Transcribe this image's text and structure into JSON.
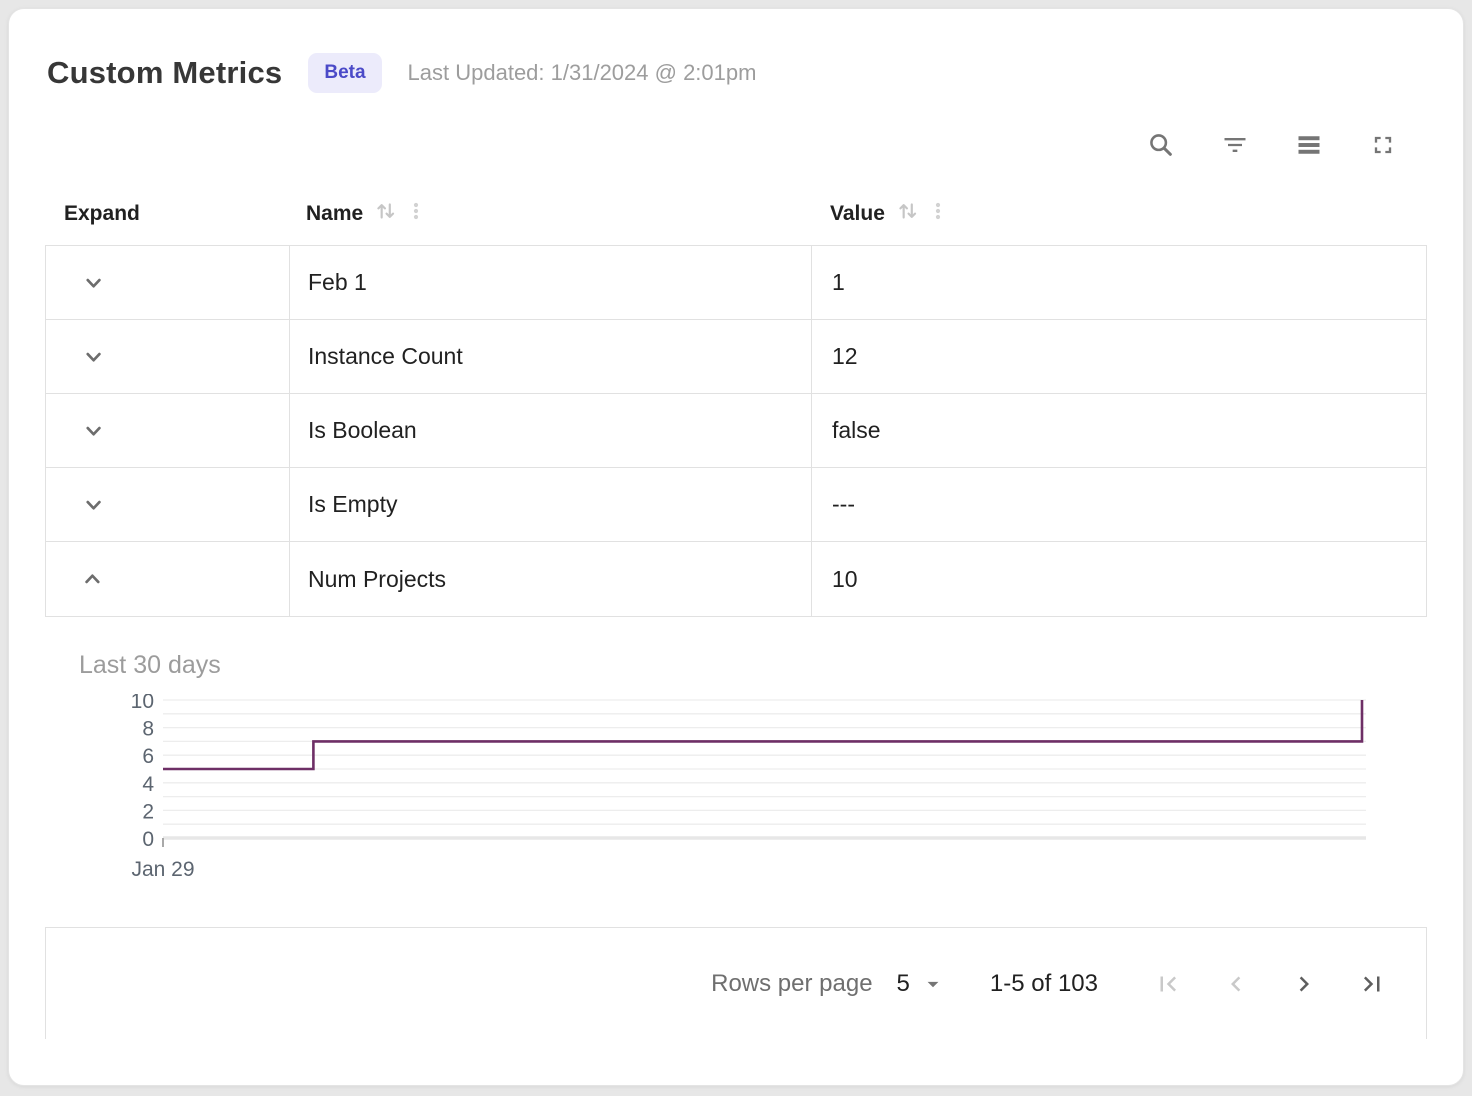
{
  "header": {
    "title": "Custom Metrics",
    "badge": "Beta",
    "last_updated": "Last Updated: 1/31/2024 @ 2:01pm",
    "badge_bg": "#ecebfb",
    "badge_color": "#4b4ac8"
  },
  "toolbar": {
    "icons": [
      "search-icon",
      "filter-icon",
      "density-icon",
      "fullscreen-icon"
    ]
  },
  "table": {
    "columns": [
      {
        "label": "Expand",
        "sortable": false
      },
      {
        "label": "Name",
        "sortable": true
      },
      {
        "label": "Value",
        "sortable": true
      }
    ],
    "rows": [
      {
        "name": "Feb 1",
        "value": "1",
        "expanded": false
      },
      {
        "name": "Instance Count",
        "value": "12",
        "expanded": false
      },
      {
        "name": "Is Boolean",
        "value": "false",
        "expanded": false
      },
      {
        "name": "Is Empty",
        "value": "---",
        "expanded": false
      },
      {
        "name": "Num Projects",
        "value": "10",
        "expanded": true
      }
    ]
  },
  "chart_data": {
    "type": "line",
    "step": true,
    "title": "Last 30 days",
    "xlabel": "",
    "ylabel": "",
    "x_domain_days": [
      0,
      30
    ],
    "points": [
      [
        0,
        5
      ],
      [
        3.75,
        5
      ],
      [
        3.75,
        7
      ],
      [
        29.9,
        7
      ],
      [
        29.9,
        10
      ]
    ],
    "y_ticks": [
      10,
      8,
      6,
      4,
      2,
      0
    ],
    "ylim": [
      0,
      10
    ],
    "grid_step": 1,
    "x_tick_labels": [
      "Jan 29"
    ],
    "line_color": "#6E2F66",
    "grid_color": "#ededed",
    "zero_line_color": "#e7e7e7"
  },
  "footer": {
    "rows_per_page_label": "Rows per page",
    "rows_per_page_value": "5",
    "range_label": "1-5 of 103",
    "pagination": {
      "first_disabled": true,
      "prev_disabled": true,
      "next_disabled": false,
      "last_disabled": false
    }
  }
}
